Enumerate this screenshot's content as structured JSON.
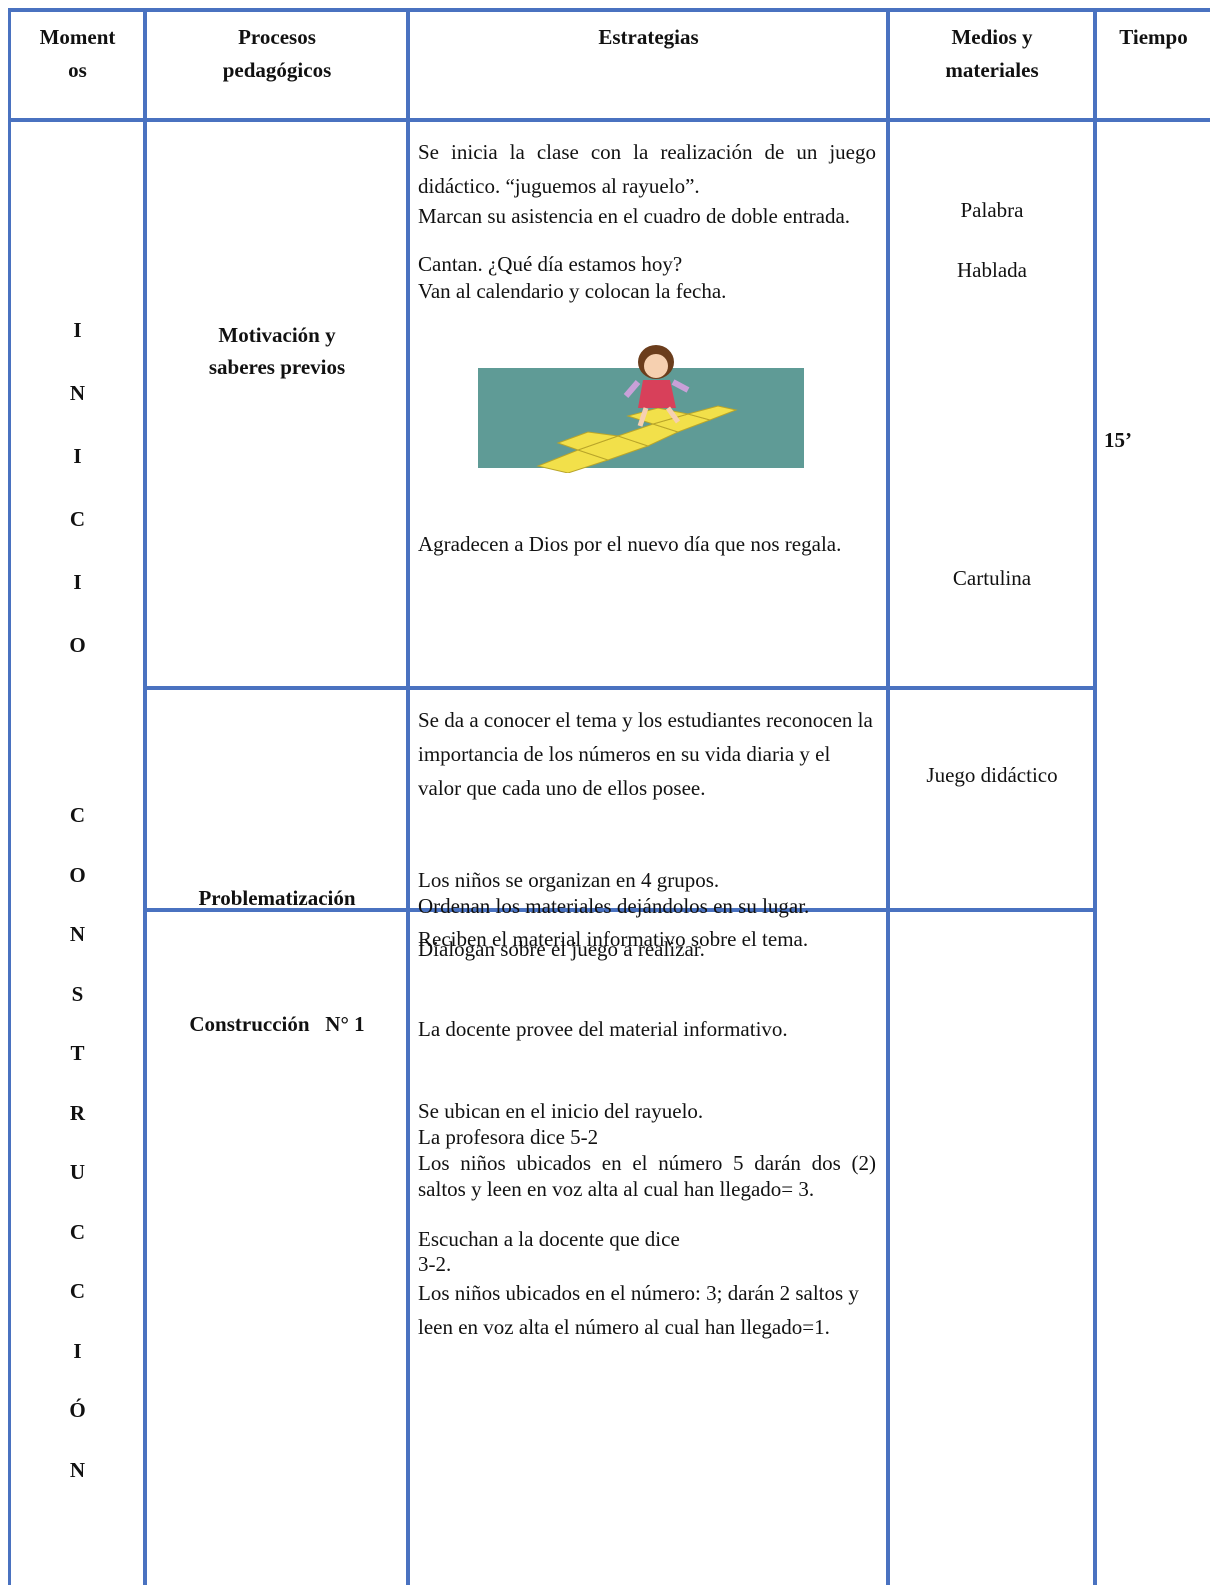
{
  "table": {
    "headers": [
      [
        "Moment",
        "os"
      ],
      [
        "Procesos",
        "pedagógicos"
      ],
      [
        "Estrategias"
      ],
      [
        "Medios y",
        "materiales"
      ],
      [
        "Tiempo"
      ]
    ],
    "moments": [
      {
        "letters": [
          "I",
          "N",
          "I",
          "C",
          "I",
          "O"
        ]
      },
      {
        "letters": [
          "C",
          "O",
          "N",
          "S",
          "T",
          "R",
          "U",
          "C",
          "C",
          "I",
          "Ó",
          "N"
        ]
      }
    ],
    "time": "15’",
    "rows": [
      {
        "process": [
          "Motivación y",
          "saberes previos"
        ],
        "strategies": [
          "Se inicia la clase con la realización de un juego didáctico. “juguemos al rayuelo”.",
          "Marcan su asistencia en el cuadro de doble entrada.",
          "Cantan. ¿Qué día estamos hoy?",
          "Van al calendario y colocan la fecha.",
          "Agradecen a Dios por el nuevo día que nos regala."
        ],
        "materials": [
          "Palabra",
          "Hablada",
          "Cartulina"
        ]
      },
      {
        "process": [
          "Problematización"
        ],
        "strategies": [
          "Se da a conocer el tema y los estudiantes reconocen la importancia de los números en su vida diaria y el valor que cada uno de ellos posee.",
          "Los niños se organizan en 4 grupos.",
          "Ordenan los materiales dejándolos en su lugar.",
          "Dialogan sobre el juego a realizar."
        ],
        "materials": [
          "Juego didáctico"
        ]
      },
      {
        "process": [
          "Construcción   N° 1"
        ],
        "strategies": [
          "Reciben el material informativo sobre el tema.",
          "La docente provee del material informativo.",
          "Se ubican en el inicio del rayuelo.",
          "La profesora dice 5-2",
          "Los niños ubicados en el número 5 darán dos (2) saltos y leen en voz alta al cual han llegado= 3.",
          "Escuchan a la docente que dice",
          "3-2.",
          "Los niños ubicados en el número: 3; darán 2 saltos y leen en voz alta el número al cual han llegado=1."
        ],
        "materials": []
      }
    ]
  }
}
